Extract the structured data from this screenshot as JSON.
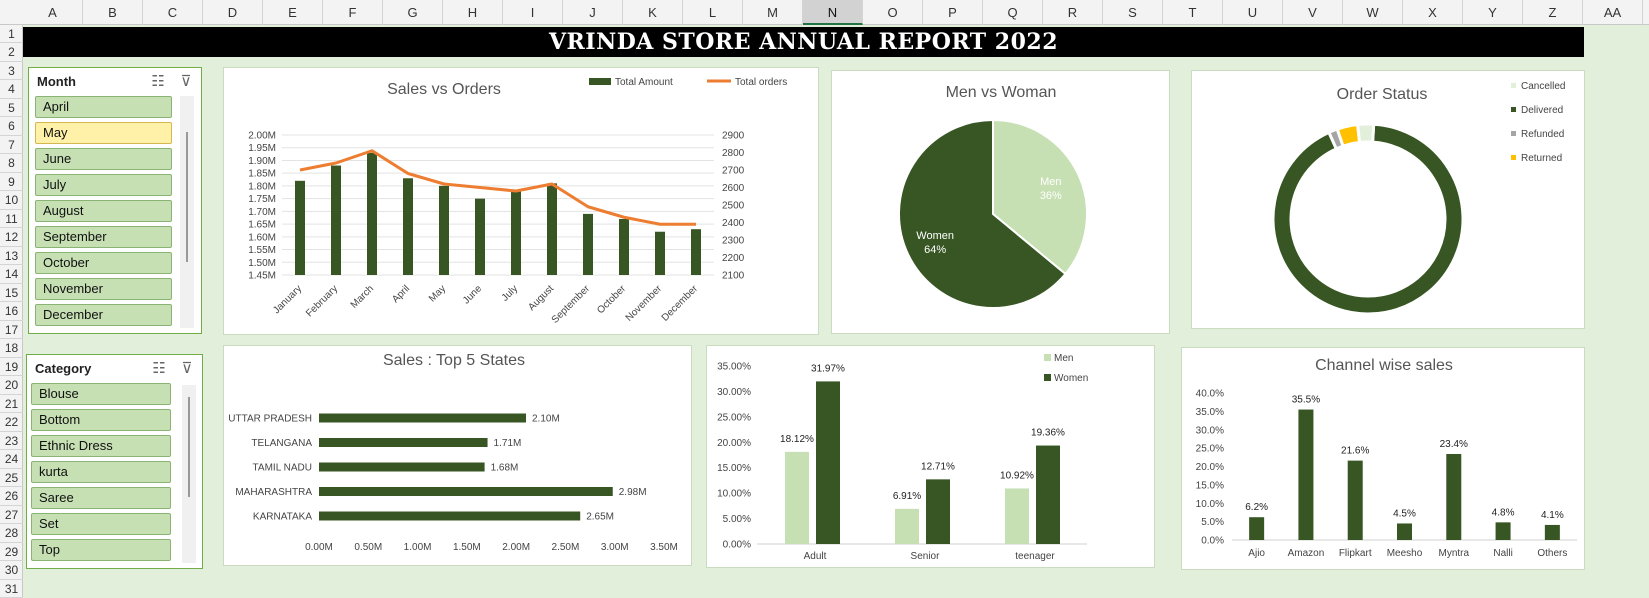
{
  "columns": [
    "A",
    "B",
    "C",
    "D",
    "E",
    "F",
    "G",
    "H",
    "I",
    "J",
    "K",
    "L",
    "M",
    "N",
    "O",
    "P",
    "Q",
    "R",
    "S",
    "T",
    "U",
    "V",
    "W",
    "X",
    "Y",
    "Z",
    "AA"
  ],
  "selected_column": "N",
  "rows": [
    "1",
    "2",
    "3",
    "4",
    "5",
    "6",
    "7",
    "8",
    "9",
    "10",
    "11",
    "12",
    "13",
    "14",
    "15",
    "16",
    "17",
    "18",
    "19",
    "20",
    "21",
    "22",
    "23",
    "24",
    "25",
    "26",
    "27",
    "28",
    "29",
    "30",
    "31"
  ],
  "report_title": "VRINDA STORE ANNUAL REPORT 2022",
  "slicer_month": {
    "title": "Month",
    "items": [
      {
        "label": "April",
        "selected": false
      },
      {
        "label": "May",
        "selected": true
      },
      {
        "label": "June",
        "selected": false
      },
      {
        "label": "July",
        "selected": false
      },
      {
        "label": "August",
        "selected": false
      },
      {
        "label": "September",
        "selected": false
      },
      {
        "label": "October",
        "selected": false
      },
      {
        "label": "November",
        "selected": false
      },
      {
        "label": "December",
        "selected": false
      }
    ]
  },
  "slicer_category": {
    "title": "Category",
    "items": [
      {
        "label": "Blouse",
        "selected": false
      },
      {
        "label": "Bottom",
        "selected": false
      },
      {
        "label": "Ethnic Dress",
        "selected": false
      },
      {
        "label": "kurta",
        "selected": false
      },
      {
        "label": "Saree",
        "selected": false
      },
      {
        "label": "Set",
        "selected": false
      },
      {
        "label": "Top",
        "selected": false
      }
    ]
  },
  "colors": {
    "dark_green": "#375623",
    "light_green": "#c6e0b4",
    "orange": "#ed7d31",
    "gray": "#a5a5a5",
    "gold": "#ffc000",
    "pale": "#e2efda"
  },
  "chart_data": [
    {
      "id": "sales-vs-orders",
      "type": "bar",
      "title": "Sales vs Orders",
      "categories": [
        "January",
        "February",
        "March",
        "April",
        "May",
        "June",
        "July",
        "August",
        "September",
        "October",
        "November",
        "December"
      ],
      "series": [
        {
          "name": "Total Amount",
          "type": "bar",
          "axis": "left",
          "values": [
            1.82,
            1.88,
            1.93,
            1.83,
            1.8,
            1.75,
            1.78,
            1.81,
            1.69,
            1.67,
            1.62,
            1.63
          ]
        },
        {
          "name": "Total orders",
          "type": "line",
          "axis": "right",
          "values": [
            2700,
            2740,
            2810,
            2680,
            2620,
            2600,
            2580,
            2620,
            2490,
            2430,
            2390,
            2390
          ]
        }
      ],
      "y_left_ticks": [
        "2.00M",
        "1.95M",
        "1.90M",
        "1.85M",
        "1.80M",
        "1.75M",
        "1.70M",
        "1.65M",
        "1.60M",
        "1.55M",
        "1.50M",
        "1.45M"
      ],
      "y_right_ticks": [
        "2900",
        "2800",
        "2700",
        "2600",
        "2500",
        "2400",
        "2300",
        "2200",
        "2100"
      ],
      "ylim_left": [
        1.45,
        2.0
      ],
      "ylim_right": [
        2100,
        2900
      ],
      "legend": "top-right",
      "grid": true
    },
    {
      "id": "men-vs-woman",
      "type": "pie",
      "title": "Men vs Woman",
      "slices": [
        {
          "name": "Men",
          "value": 36,
          "label": "36%"
        },
        {
          "name": "Women",
          "value": 64,
          "label": "64%"
        }
      ]
    },
    {
      "id": "order-status",
      "type": "pie",
      "title": "Order  Status",
      "donut": true,
      "slices": [
        {
          "name": "Cancelled",
          "value": 2.7
        },
        {
          "name": "Delivered",
          "value": 92.3
        },
        {
          "name": "Refunded",
          "value": 1.5
        },
        {
          "name": "Returned",
          "value": 3.5
        }
      ],
      "legend": "right"
    },
    {
      "id": "top-5-states",
      "type": "bar",
      "orientation": "horizontal",
      "title": "Sales : Top 5 States",
      "categories": [
        "UTTAR PRADESH",
        "TELANGANA",
        "TAMIL NADU",
        "MAHARASHTRA",
        "KARNATAKA"
      ],
      "values": [
        2.1,
        1.71,
        1.68,
        2.98,
        2.65
      ],
      "data_labels": [
        "2.10M",
        "1.71M",
        "1.68M",
        "2.98M",
        "2.65M"
      ],
      "x_ticks": [
        "0.00M",
        "0.50M",
        "1.00M",
        "1.50M",
        "2.00M",
        "2.50M",
        "3.00M",
        "3.50M"
      ],
      "xlim": [
        0,
        3.5
      ]
    },
    {
      "id": "age-gender",
      "type": "bar",
      "categories": [
        "Adult",
        "Senior",
        "teenager"
      ],
      "series": [
        {
          "name": "Men",
          "values": [
            18.12,
            6.91,
            10.92
          ],
          "labels": [
            "18.12%",
            "6.91%",
            "10.92%"
          ]
        },
        {
          "name": "Women",
          "values": [
            31.97,
            12.71,
            19.36
          ],
          "labels": [
            "31.97%",
            "12.71%",
            "19.36%"
          ]
        }
      ],
      "y_ticks": [
        "35.00%",
        "30.00%",
        "25.00%",
        "20.00%",
        "15.00%",
        "10.00%",
        "5.00%",
        "0.00%"
      ],
      "ylim": [
        0,
        35
      ],
      "legend": "top-right"
    },
    {
      "id": "channel-wise-sales",
      "type": "bar",
      "title": "Channel wise sales",
      "categories": [
        "Ajio",
        "Amazon",
        "Flipkart",
        "Meesho",
        "Myntra",
        "Nalli",
        "Others"
      ],
      "values": [
        6.2,
        35.5,
        21.6,
        4.5,
        23.4,
        4.8,
        4.1
      ],
      "data_labels": [
        "6.2%",
        "35.5%",
        "21.6%",
        "4.5%",
        "23.4%",
        "4.8%",
        "4.1%"
      ],
      "y_ticks": [
        "40.0%",
        "35.0%",
        "30.0%",
        "25.0%",
        "20.0%",
        "15.0%",
        "10.0%",
        "5.0%",
        "0.0%"
      ],
      "ylim": [
        0,
        40
      ]
    }
  ]
}
